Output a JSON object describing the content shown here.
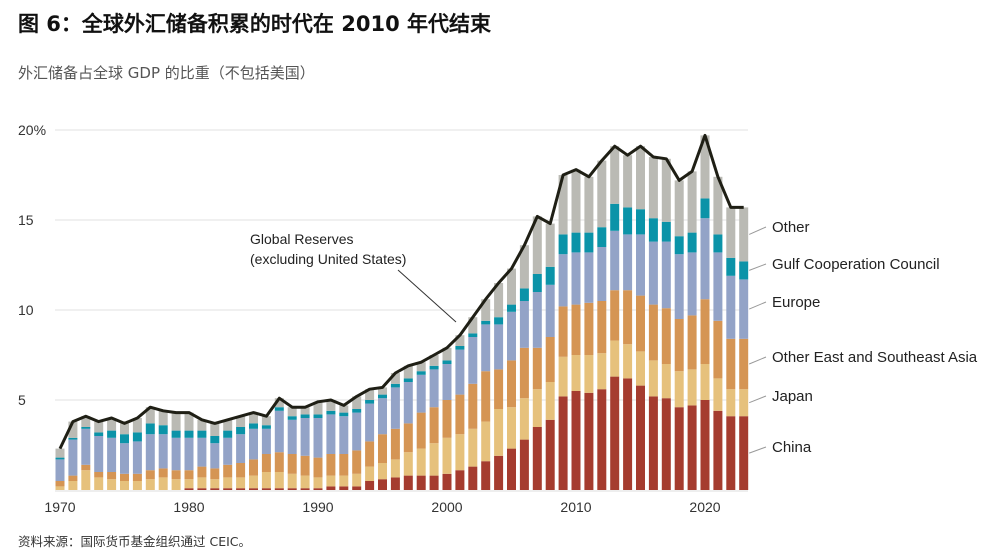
{
  "title": "图 6：全球外汇储备积累的时代在 2010 年代结束",
  "subtitle": "外汇储备占全球 GDP 的比重（不包括美国）",
  "source": "资料来源：国际货币基金组织通过 CEIC。",
  "chart_data": {
    "type": "bar",
    "stacked": true,
    "title": "图 6：全球外汇储备积累的时代在 2010 年代结束",
    "subtitle": "外汇储备占全球 GDP 的比重（不包括美国）",
    "xlabel": "",
    "ylabel": "",
    "ylim": [
      0,
      20
    ],
    "yticks": [
      "5",
      "10",
      "15",
      "20%"
    ],
    "ytick_values": [
      5,
      10,
      15,
      20
    ],
    "xticks": [
      "1970",
      "1980",
      "1990",
      "2000",
      "2010",
      "2020"
    ],
    "xtick_values": [
      1970,
      1980,
      1990,
      2000,
      2010,
      2020
    ],
    "grid": true,
    "legend_placement": "right (direct labels)",
    "x": [
      1970,
      1971,
      1972,
      1973,
      1974,
      1975,
      1976,
      1977,
      1978,
      1979,
      1980,
      1981,
      1982,
      1983,
      1984,
      1985,
      1986,
      1987,
      1988,
      1989,
      1990,
      1991,
      1992,
      1993,
      1994,
      1995,
      1996,
      1997,
      1998,
      1999,
      2000,
      2001,
      2002,
      2003,
      2004,
      2005,
      2006,
      2007,
      2008,
      2009,
      2010,
      2011,
      2012,
      2013,
      2014,
      2015,
      2016,
      2017,
      2018,
      2019,
      2020,
      2021,
      2022,
      2023
    ],
    "series": [
      {
        "name": "China",
        "color": "#a53c2f",
        "values": [
          0,
          0,
          0,
          0,
          0,
          0,
          0,
          0,
          0,
          0,
          0.1,
          0.1,
          0.1,
          0.1,
          0.1,
          0.1,
          0.1,
          0.1,
          0.1,
          0.1,
          0.1,
          0.2,
          0.2,
          0.2,
          0.5,
          0.6,
          0.7,
          0.8,
          0.8,
          0.8,
          0.9,
          1.1,
          1.3,
          1.6,
          1.9,
          2.3,
          2.8,
          3.5,
          3.9,
          5.2,
          5.5,
          5.4,
          5.6,
          6.3,
          6.2,
          5.8,
          5.2,
          5.1,
          4.6,
          4.7,
          5.0,
          4.4,
          4.1,
          4.1
        ]
      },
      {
        "name": "Japan",
        "color": "#e6c17c",
        "values": [
          0.2,
          0.5,
          1.1,
          0.7,
          0.6,
          0.5,
          0.5,
          0.6,
          0.7,
          0.6,
          0.5,
          0.6,
          0.5,
          0.6,
          0.6,
          0.7,
          0.9,
          0.9,
          0.8,
          0.7,
          0.6,
          0.6,
          0.6,
          0.7,
          0.8,
          0.9,
          1.0,
          1.3,
          1.5,
          1.8,
          2.0,
          2.0,
          2.1,
          2.2,
          2.6,
          2.3,
          2.3,
          2.1,
          2.1,
          2.2,
          2.0,
          2.1,
          2.0,
          2.0,
          1.9,
          1.9,
          2.0,
          1.9,
          2.0,
          2.0,
          2.0,
          1.8,
          1.5,
          1.5
        ]
      },
      {
        "name": "Other East and Southeast Asia",
        "color": "#d59554",
        "values": [
          0.3,
          0.3,
          0.3,
          0.3,
          0.4,
          0.4,
          0.4,
          0.5,
          0.5,
          0.5,
          0.5,
          0.6,
          0.6,
          0.7,
          0.8,
          0.9,
          1.0,
          1.1,
          1.1,
          1.1,
          1.1,
          1.2,
          1.2,
          1.3,
          1.4,
          1.6,
          1.7,
          1.6,
          2.0,
          2.0,
          2.1,
          2.2,
          2.5,
          2.8,
          2.2,
          2.6,
          2.8,
          2.3,
          2.5,
          2.8,
          2.8,
          2.9,
          2.9,
          2.8,
          3.0,
          3.1,
          3.1,
          3.1,
          2.9,
          3.0,
          3.6,
          3.2,
          2.8,
          2.8
        ]
      },
      {
        "name": "Europe",
        "color": "#93a3c7",
        "values": [
          1.2,
          2.0,
          2.0,
          2.0,
          1.9,
          1.7,
          1.8,
          2.0,
          1.9,
          1.8,
          1.8,
          1.6,
          1.4,
          1.5,
          1.6,
          1.7,
          1.4,
          2.3,
          1.9,
          2.1,
          2.2,
          2.2,
          2.1,
          2.1,
          2.1,
          2.0,
          2.3,
          2.3,
          2.1,
          2.1,
          2.0,
          2.5,
          2.6,
          2.6,
          2.5,
          2.7,
          2.6,
          3.1,
          2.9,
          2.9,
          2.9,
          2.8,
          3.0,
          3.3,
          3.1,
          3.4,
          3.5,
          3.7,
          3.6,
          3.5,
          4.5,
          3.8,
          3.5,
          3.3
        ]
      },
      {
        "name": "Gulf Cooperation Council",
        "color": "#0b93a8",
        "values": [
          0.1,
          0.1,
          0.1,
          0.2,
          0.4,
          0.5,
          0.5,
          0.6,
          0.5,
          0.4,
          0.4,
          0.4,
          0.4,
          0.4,
          0.4,
          0.3,
          0.2,
          0.2,
          0.2,
          0.2,
          0.2,
          0.2,
          0.2,
          0.2,
          0.2,
          0.2,
          0.2,
          0.2,
          0.2,
          0.2,
          0.2,
          0.2,
          0.2,
          0.2,
          0.4,
          0.4,
          0.7,
          1.0,
          1.0,
          1.1,
          1.1,
          1.1,
          1.1,
          1.5,
          1.5,
          1.4,
          1.3,
          1.1,
          1.0,
          1.1,
          1.1,
          1.0,
          1.0,
          1.0
        ]
      },
      {
        "name": "Other",
        "color": "#babab4",
        "values": [
          0.5,
          0.9,
          0.6,
          0.6,
          0.7,
          0.6,
          0.8,
          0.9,
          0.8,
          1.0,
          1.0,
          0.6,
          0.7,
          0.6,
          0.6,
          0.6,
          0.5,
          0.5,
          0.5,
          0.4,
          0.7,
          0.6,
          0.4,
          0.7,
          0.6,
          0.4,
          0.6,
          0.7,
          0.5,
          0.6,
          0.7,
          0.6,
          0.9,
          1.2,
          1.9,
          2.0,
          2.4,
          3.2,
          2.4,
          3.3,
          3.5,
          3.1,
          3.7,
          3.2,
          2.9,
          3.5,
          3.4,
          3.5,
          3.1,
          3.4,
          3.5,
          3.2,
          2.8,
          3.0
        ]
      }
    ],
    "line": {
      "name": "Global Reserves (excluding United States)",
      "color": "#1f1f15",
      "values": [
        2.3,
        3.8,
        4.1,
        3.8,
        4.0,
        3.7,
        4.0,
        4.6,
        4.4,
        4.3,
        4.3,
        3.9,
        3.7,
        3.9,
        4.1,
        4.3,
        4.1,
        5.1,
        4.6,
        4.6,
        4.9,
        5.0,
        4.7,
        5.2,
        5.6,
        5.7,
        6.5,
        6.9,
        7.1,
        7.5,
        7.9,
        8.6,
        9.6,
        10.6,
        11.5,
        12.3,
        13.6,
        15.2,
        14.8,
        17.5,
        17.8,
        17.4,
        18.3,
        19.1,
        18.6,
        19.1,
        18.5,
        18.4,
        17.2,
        17.7,
        19.7,
        17.4,
        15.7,
        15.7
      ]
    },
    "annotation": {
      "line1": "Global Reserves",
      "line2": "(excluding United States)"
    }
  }
}
